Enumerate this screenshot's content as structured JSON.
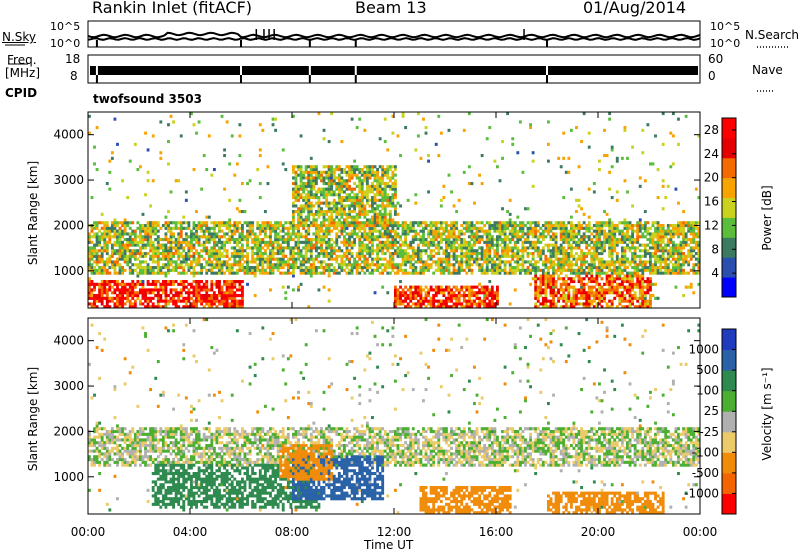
{
  "header": {
    "station": "Rankin Inlet (fitACF)",
    "beam": "Beam 13",
    "date": "01/Aug/2014"
  },
  "sky_panel": {
    "left_label": "N.Sky",
    "right_label": "N.Search",
    "yticks": [
      "10^5",
      "10^0"
    ]
  },
  "freq_panel": {
    "left_label_1": "Freq.",
    "left_label_2": "[MHz]",
    "left_ticks": [
      "18",
      "8"
    ],
    "right_label": "Nave",
    "right_ticks": [
      "60",
      "0"
    ]
  },
  "cpid": {
    "label": "CPID",
    "value": "twofsound 3503"
  },
  "colors": {
    "power_scale": [
      "#0000ff",
      "#2a4fae",
      "#3c7b62",
      "#5bbd3c",
      "#c9d21e",
      "#f7a400",
      "#f56a00",
      "#e40000",
      "#ff0000"
    ],
    "velocity_scale": [
      "#ff0000",
      "#f46400",
      "#f08c0a",
      "#ebca6a",
      "#b0b0b0",
      "#4caf32",
      "#2e8a4e",
      "#2a62a8",
      "#1f3cbf"
    ]
  },
  "chart_data": [
    {
      "type": "heatmap",
      "title": "Power",
      "ylabel": "Slant Range [km]",
      "xlabel": "Time UT",
      "xticks": [
        "00:00",
        "04:00",
        "08:00",
        "12:00",
        "16:00",
        "20:00",
        "00:00"
      ],
      "yticks": [
        1000,
        2000,
        3000,
        4000
      ],
      "ylim": [
        180,
        4500
      ],
      "colorbar": {
        "label": "Power [dB]",
        "ticks": [
          4,
          8,
          12,
          16,
          20,
          24,
          28
        ],
        "range": [
          0,
          30
        ]
      },
      "features": [
        {
          "time_range_h": [
            0.0,
            6.0
          ],
          "range_km": [
            200,
            800
          ],
          "level_db": 26
        },
        {
          "time_range_h": [
            0.0,
            24.0
          ],
          "range_km": [
            900,
            2100
          ],
          "level_db": 14
        },
        {
          "time_range_h": [
            12.0,
            16.0
          ],
          "range_km": [
            200,
            700
          ],
          "level_db": 24
        },
        {
          "time_range_h": [
            17.5,
            22.0
          ],
          "range_km": [
            200,
            900
          ],
          "level_db": 22
        },
        {
          "time_range_h": [
            8.0,
            12.0
          ],
          "range_km": [
            2000,
            3300
          ],
          "level_db": 14
        }
      ]
    },
    {
      "type": "heatmap",
      "title": "Velocity",
      "ylabel": "Slant Range [km]",
      "xlabel": "Time UT",
      "xticks": [
        "00:00",
        "04:00",
        "08:00",
        "12:00",
        "16:00",
        "20:00",
        "00:00"
      ],
      "yticks": [
        1000,
        2000,
        3000,
        4000
      ],
      "ylim": [
        180,
        4500
      ],
      "colorbar": {
        "label": "Velocity [m s⁻¹]",
        "ticks": [
          "1000",
          "500",
          "100",
          "25",
          "-25",
          "-100",
          "-500",
          "-1000"
        ]
      },
      "features": [
        {
          "time_range_h": [
            0.0,
            24.0
          ],
          "range_km": [
            1200,
            2100
          ],
          "velocity": 0
        },
        {
          "time_range_h": [
            2.5,
            9.0
          ],
          "range_km": [
            300,
            1300
          ],
          "velocity": 200
        },
        {
          "time_range_h": [
            8.0,
            11.5
          ],
          "range_km": [
            500,
            1500
          ],
          "velocity": 800
        },
        {
          "time_range_h": [
            7.5,
            9.5
          ],
          "range_km": [
            900,
            1700
          ],
          "velocity": -300
        },
        {
          "time_range_h": [
            13.0,
            16.5
          ],
          "range_km": [
            200,
            800
          ],
          "velocity": -300
        },
        {
          "time_range_h": [
            18.0,
            22.5
          ],
          "range_km": [
            200,
            700
          ],
          "velocity": -300
        }
      ]
    }
  ]
}
